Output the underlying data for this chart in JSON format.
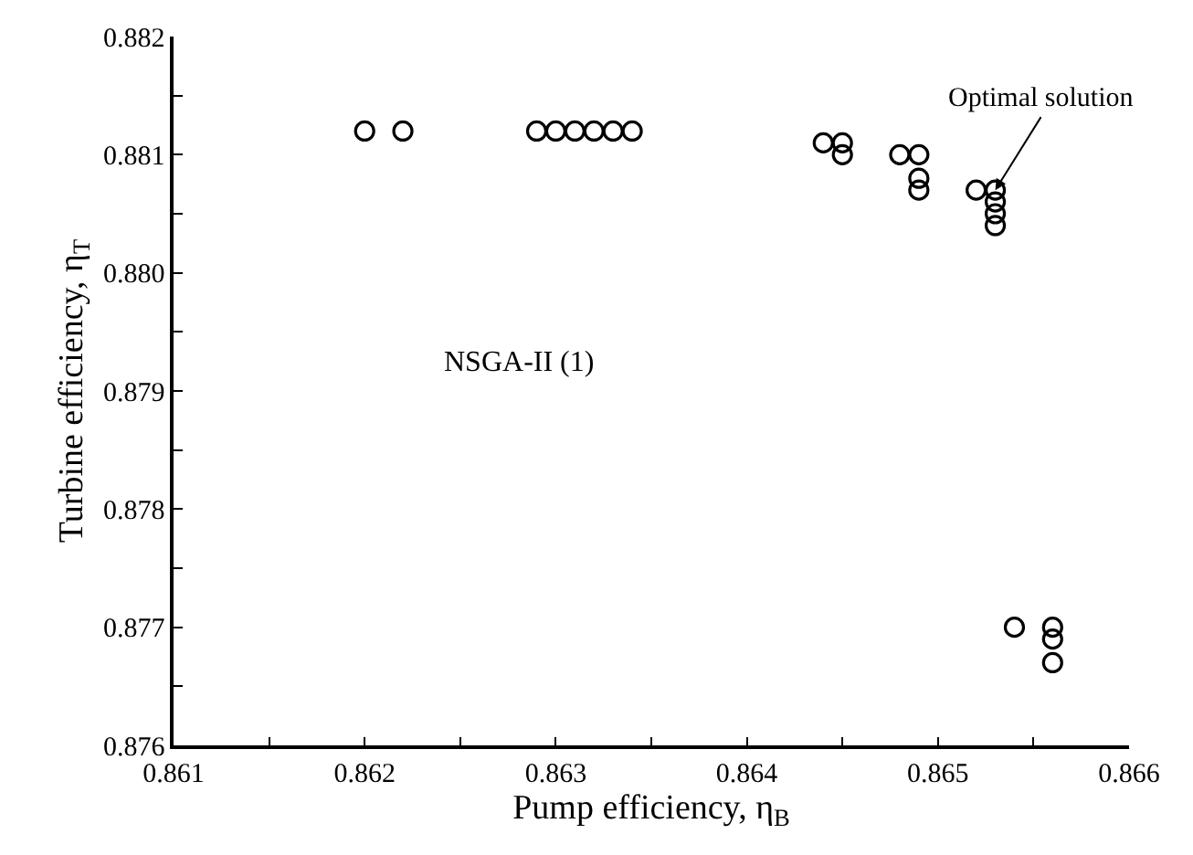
{
  "chart_data": {
    "type": "scatter",
    "xlabel": "Pump efficiency, η$_{B}$",
    "ylabel": "Turbine efficiency, η$_{T}$",
    "annotations": [
      {
        "text": "Optimal solution",
        "x": 0.8653,
        "y": 0.8807
      },
      "NSGA-II (1)"
    ],
    "x": [
      0.862,
      0.8622,
      0.8629,
      0.863,
      0.8631,
      0.8632,
      0.8633,
      0.8634,
      0.8644,
      0.8645,
      0.8645,
      0.8648,
      0.8649,
      0.8649,
      0.8649,
      0.8652,
      0.8653,
      0.8653,
      0.8653,
      0.8653,
      0.8654,
      0.8656,
      0.8656,
      0.8656
    ],
    "series": [
      {
        "color": "#000000",
        "values": [
          0.8812,
          0.8812,
          0.8812,
          0.8812,
          0.8812,
          0.8812,
          0.8812,
          0.8812,
          0.8811,
          0.8811,
          0.881,
          0.881,
          0.881,
          0.8808,
          0.8807,
          0.8807,
          0.8807,
          0.8806,
          0.8805,
          0.8804,
          0.877,
          0.877,
          0.8769,
          0.8767
        ]
      }
    ],
    "marker": "circle",
    "xlim": [
      0.861,
      0.866
    ],
    "ylim": [
      0.876,
      0.882
    ],
    "xticks": [
      0.861,
      {
        "value": 0.8615,
        "label": null
      },
      0.862,
      {
        "value": 0.8625,
        "label": null
      },
      0.863,
      {
        "value": 0.8635,
        "label": null
      },
      0.864,
      {
        "value": 0.8645,
        "label": null
      },
      0.865,
      {
        "value": 0.8655,
        "label": null
      },
      0.866
    ],
    "yticks": [
      0.876,
      {
        "value": 0.8765,
        "label": null
      },
      0.877,
      {
        "value": 0.8775,
        "label": null
      },
      0.878,
      {
        "value": 0.8785,
        "label": null
      },
      0.879,
      {
        "value": 0.8795,
        "label": null
      },
      {
        "value": 0.88,
        "label": "0.880"
      },
      {
        "value": 0.8805,
        "label": null
      },
      0.881,
      {
        "value": 0.8815,
        "label": null
      },
      0.882
    ]
  }
}
